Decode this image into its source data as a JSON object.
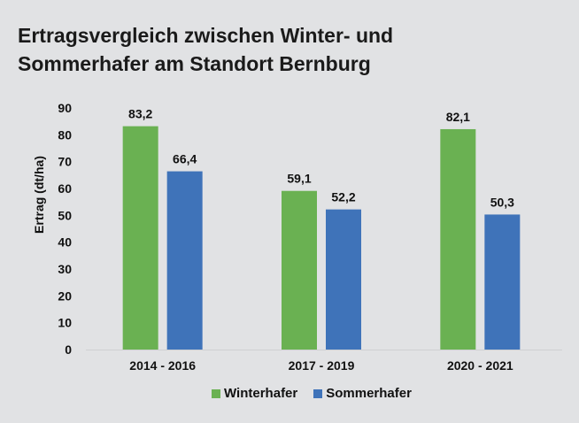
{
  "chart_data": {
    "type": "bar",
    "title_lines": [
      "Ertragsvergleich zwischen Winter- und",
      "Sommerhafer am Standort Bernburg"
    ],
    "xlabel": "",
    "ylabel": "Ertrag (dt/ha)",
    "ylim": [
      0,
      90
    ],
    "yticks": [
      0,
      10,
      20,
      30,
      40,
      50,
      60,
      70,
      80,
      90
    ],
    "categories": [
      "2014 - 2016",
      "2017 - 2019",
      "2020 - 2021"
    ],
    "series": [
      {
        "name": "Winterhafer",
        "color": "#6ab152",
        "values": [
          83.2,
          59.1,
          82.1
        ],
        "labels": [
          "83,2",
          "59,1",
          "82,1"
        ]
      },
      {
        "name": "Sommerhafer",
        "color": "#3f73b9",
        "values": [
          66.4,
          52.2,
          50.3
        ],
        "labels": [
          "66,4",
          "52,2",
          "50,3"
        ]
      }
    ],
    "grid": false,
    "legend_position": "bottom"
  }
}
